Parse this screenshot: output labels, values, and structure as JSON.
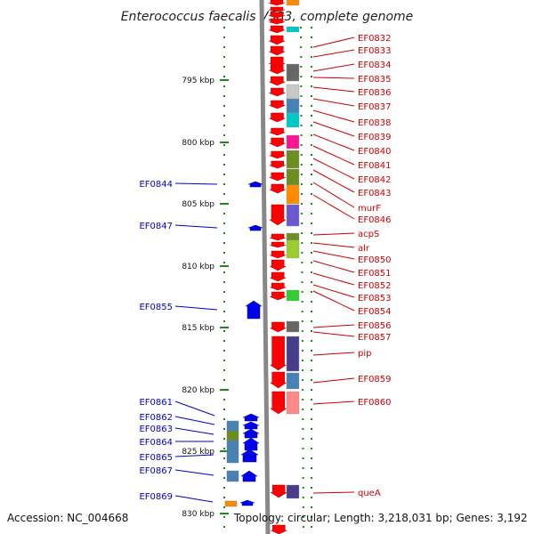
{
  "title": "Enterococcus faecalis V583, complete genome",
  "footer": {
    "accession": "Accession: NC_004668",
    "topology": "Topology: circular; Length: 3,218,031 bp; Genes: 3,192"
  },
  "colors": {
    "forward_gene": "#ff0000",
    "reverse_gene": "#0000ee",
    "backbone": "#888888",
    "dots": "#1a8a1a",
    "red_label": "#cc0000",
    "blue_label": "#0000cc"
  },
  "scale_labels": [
    "795 kbp",
    "800 kbp",
    "805 kbp",
    "810 kbp",
    "815 kbp",
    "820 kbp",
    "825 kbp",
    "830 kbp"
  ],
  "forward_labels": [
    "EF0832",
    "EF0833",
    "EF0834",
    "EF0835",
    "EF0836",
    "EF0837",
    "EF0838",
    "EF0839",
    "EF0840",
    "EF0841",
    "EF0842",
    "EF0843",
    "murF",
    "EF0846",
    "acpS",
    "alr",
    "EF0850",
    "EF0851",
    "EF0852",
    "EF0853",
    "EF0854",
    "EF0856",
    "EF0857",
    "pip",
    "EF0859",
    "EF0860",
    "queA"
  ],
  "reverse_labels": [
    "EF0844",
    "EF0847",
    "EF0855",
    "EF0861",
    "EF0862",
    "EF0863",
    "EF0864",
    "EF0865",
    "EF0867",
    "EF0869"
  ],
  "cog_colors": [
    "#ff8800",
    "#00c8c8",
    "#666666",
    "#c8c8c8",
    "#4682b4",
    "#00c8c8",
    "#ff1493",
    "#6b8e23",
    "#6b8e23",
    "#ff8c00",
    "#6a5acd",
    "#6b8e23",
    "#9acd32",
    "#32cd32",
    "#666666",
    "#483d8b",
    "#4682b4",
    "#ff8888",
    "#483d8b"
  ]
}
